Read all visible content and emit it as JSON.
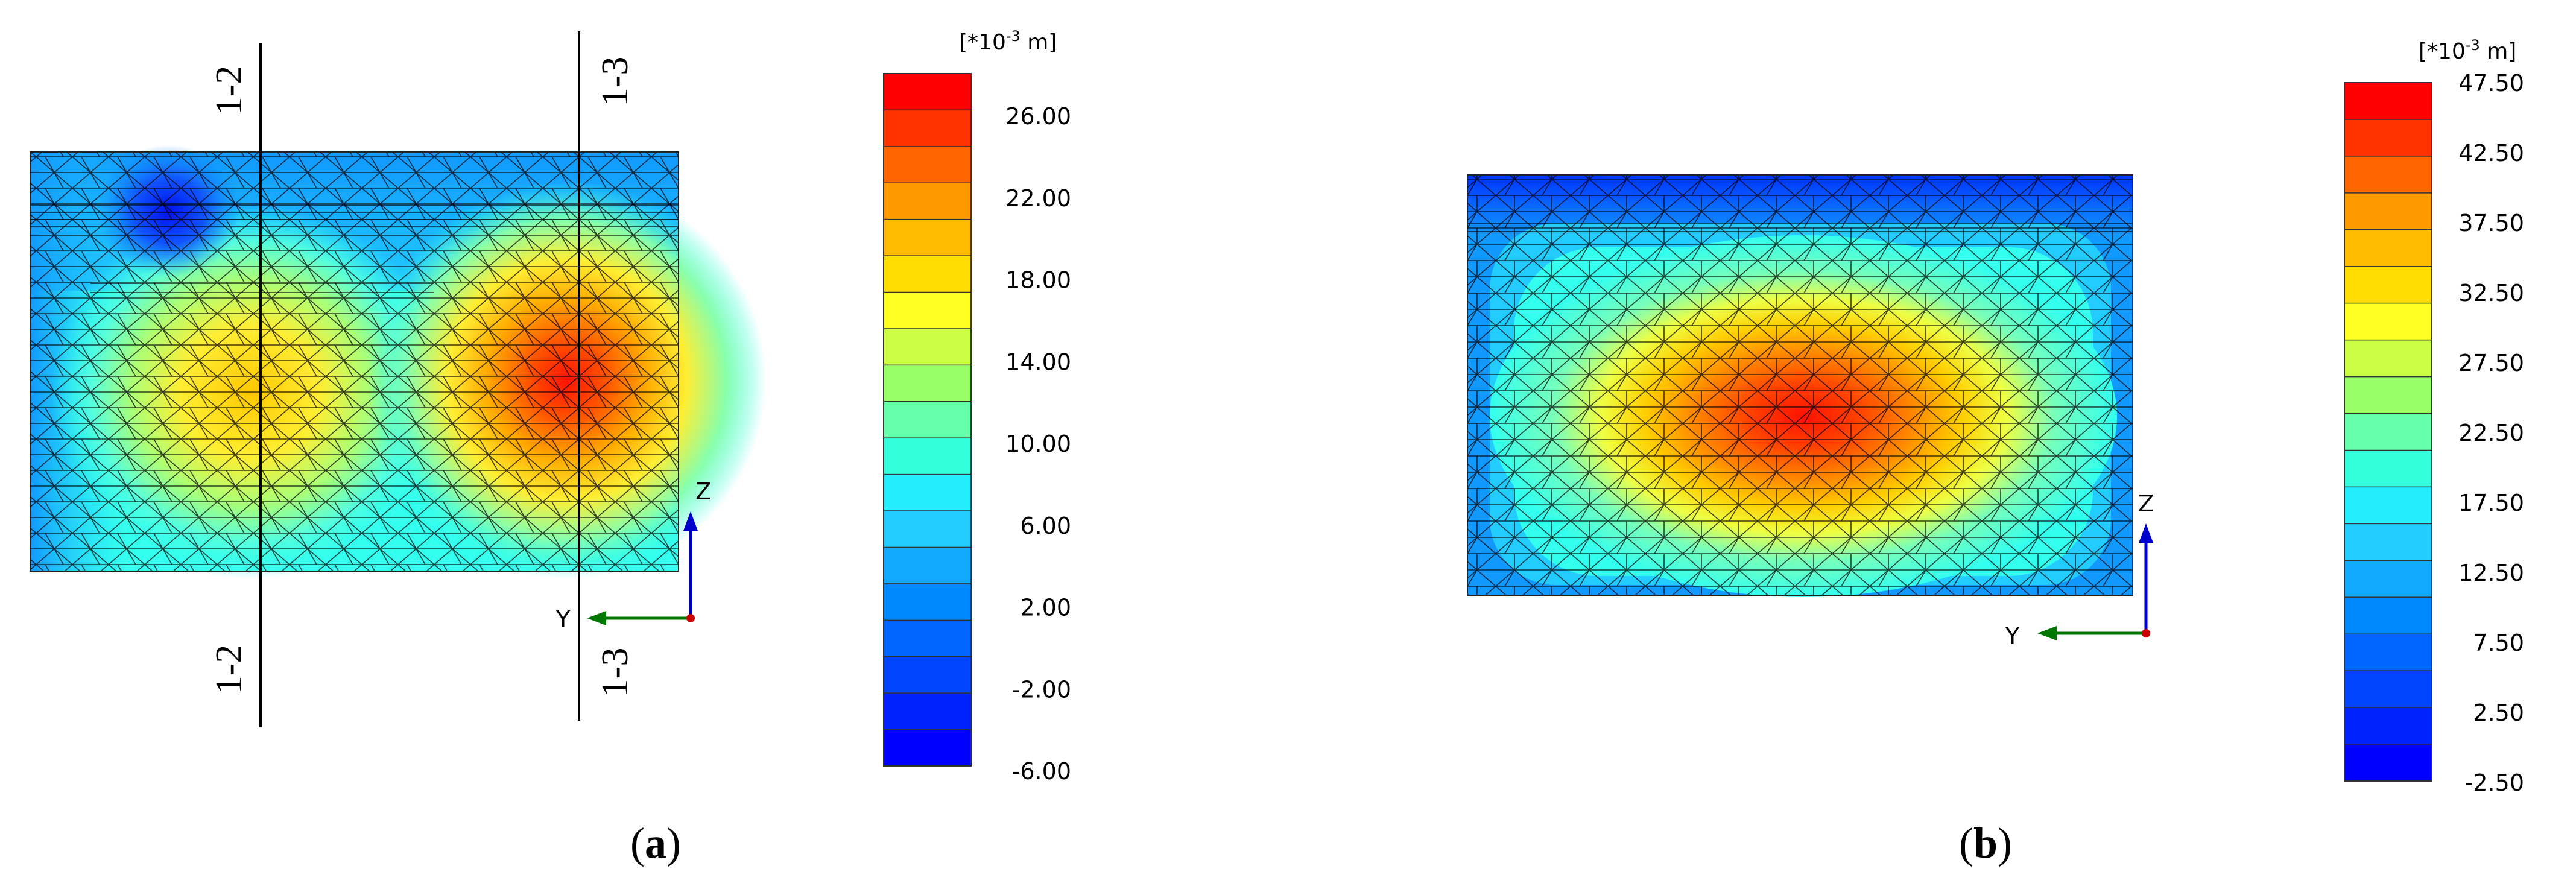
{
  "panels": [
    {
      "caption_letter": "a",
      "legend": {
        "unit_prefix": "[*10",
        "unit_exp": "-3",
        "unit_suffix": " m]",
        "tick_labels": [
          "26.00",
          "22.00",
          "18.00",
          "14.00",
          "10.00",
          "6.00",
          "2.00",
          "-2.00",
          "-6.00"
        ],
        "band_colors": [
          "#ff0000",
          "#ff3300",
          "#ff6600",
          "#ff9900",
          "#ffbb00",
          "#ffdd00",
          "#ffff22",
          "#ccff44",
          "#99ff66",
          "#66ffaa",
          "#33ffdd",
          "#22eeff",
          "#22ccff",
          "#11aaff",
          "#0088ff",
          "#0066ff",
          "#0044ff",
          "#0022ff",
          "#0000ff"
        ]
      },
      "section_labels": [
        "1-2",
        "1-3",
        "1-2",
        "1-3"
      ],
      "axes": {
        "z_label": "Z",
        "y_label": "Y"
      },
      "contour_colors": {
        "min": "#0011ee",
        "low": "#22aaff",
        "mid": "#33ffee",
        "high": "#ffee22",
        "max": "#ff1100"
      }
    },
    {
      "caption_letter": "b",
      "legend": {
        "unit_prefix": "[*10",
        "unit_exp": "-3",
        "unit_suffix": " m]",
        "tick_labels": [
          "47.50",
          "42.50",
          "37.50",
          "32.50",
          "27.50",
          "22.50",
          "17.50",
          "12.50",
          "7.50",
          "2.50",
          "-2.50"
        ],
        "band_colors": [
          "#ff0000",
          "#ff3300",
          "#ff6600",
          "#ff9900",
          "#ffbb00",
          "#ffdd00",
          "#ffff22",
          "#ccff44",
          "#99ff66",
          "#66ffaa",
          "#33ffdd",
          "#22eeff",
          "#22ccff",
          "#11aaff",
          "#0088ff",
          "#0066ff",
          "#0044ff",
          "#0022ff",
          "#0000ff"
        ]
      },
      "axes": {
        "z_label": "Z",
        "y_label": "Y"
      },
      "contour_colors": {
        "min": "#0011ee",
        "low": "#22aaff",
        "mid": "#33ffee",
        "high": "#ffee22",
        "max": "#ff1100"
      }
    }
  ]
}
